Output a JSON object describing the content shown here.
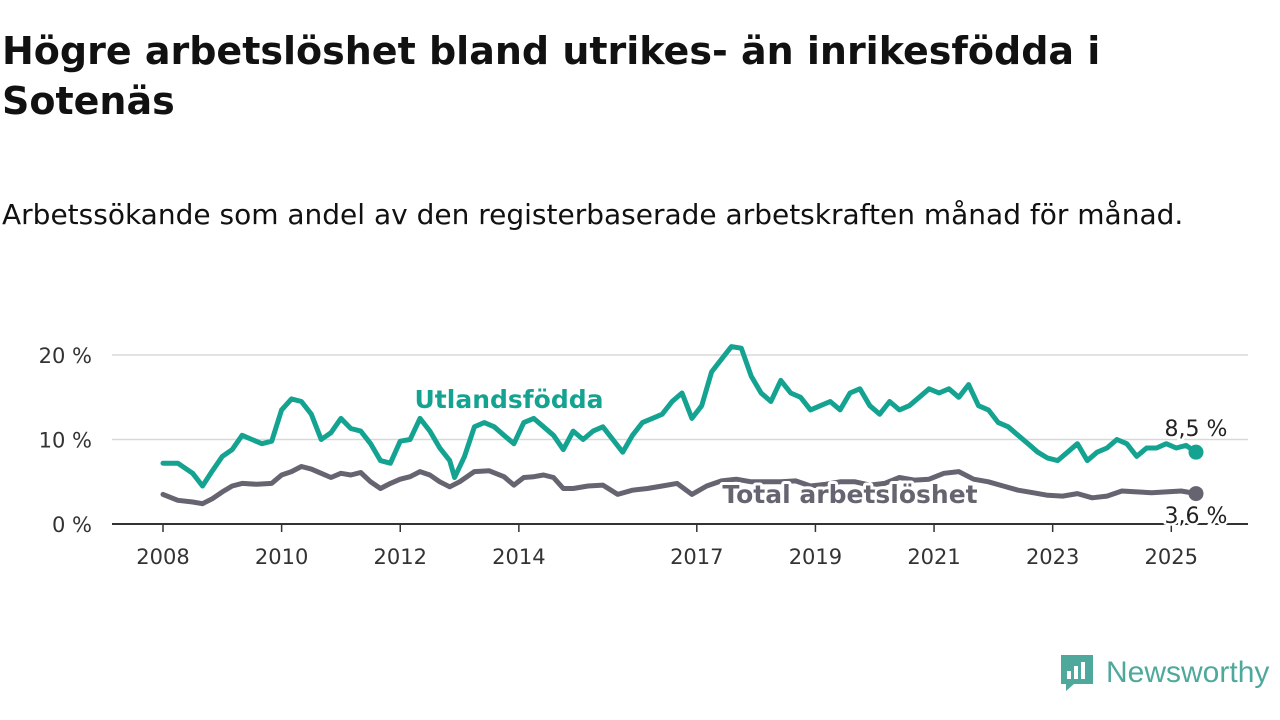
{
  "header": {
    "title": "Högre arbetslöshet bland utrikes- än inrikesfödda i Sotenäs",
    "subtitle": "Arbetssökande som andel av den registerbaserade arbetskraften månad för månad."
  },
  "brand": {
    "name": "Newsworthy",
    "logo_icon": "newsworthy-chart-logo-icon",
    "color": "#4fa89c"
  },
  "chart_data": {
    "type": "line",
    "title": "Högre arbetslöshet bland utrikes- än inrikesfödda i Sotenäs",
    "subtitle": "Arbetssökande som andel av den registerbaserade arbetskraften månad för månad.",
    "x_range": [
      "2008-01",
      "2025-06"
    ],
    "ylim": [
      0,
      21.5
    ],
    "y_ticks": [
      0,
      10,
      20
    ],
    "y_tick_labels": [
      "0 %",
      "10 %",
      "20 %"
    ],
    "x_tick_labels": [
      "2008",
      "2010",
      "2012",
      "2014",
      "2017",
      "2019",
      "2021",
      "2023",
      "2025"
    ],
    "grid": true,
    "legend": "direct labels on lines",
    "series": [
      {
        "name": "Utlandsfödda",
        "color": "#14a391",
        "end_label": "8,5 %",
        "points": [
          [
            "2008-01",
            7.2
          ],
          [
            "2008-04",
            7.2
          ],
          [
            "2008-07",
            6.0
          ],
          [
            "2008-09",
            4.5
          ],
          [
            "2008-11",
            6.3
          ],
          [
            "2009-01",
            8.0
          ],
          [
            "2009-03",
            8.8
          ],
          [
            "2009-05",
            10.5
          ],
          [
            "2009-07",
            10.0
          ],
          [
            "2009-09",
            9.5
          ],
          [
            "2009-11",
            9.8
          ],
          [
            "2010-01",
            13.5
          ],
          [
            "2010-03",
            14.8
          ],
          [
            "2010-05",
            14.5
          ],
          [
            "2010-07",
            13.0
          ],
          [
            "2010-09",
            10.0
          ],
          [
            "2010-11",
            10.8
          ],
          [
            "2011-01",
            12.5
          ],
          [
            "2011-03",
            11.3
          ],
          [
            "2011-05",
            11.0
          ],
          [
            "2011-07",
            9.5
          ],
          [
            "2011-09",
            7.5
          ],
          [
            "2011-11",
            7.2
          ],
          [
            "2012-01",
            9.8
          ],
          [
            "2012-03",
            10.0
          ],
          [
            "2012-05",
            12.5
          ],
          [
            "2012-07",
            11.0
          ],
          [
            "2012-09",
            9.0
          ],
          [
            "2012-11",
            7.5
          ],
          [
            "2012-12",
            5.5
          ],
          [
            "2013-02",
            8.0
          ],
          [
            "2013-04",
            11.5
          ],
          [
            "2013-06",
            12.0
          ],
          [
            "2013-08",
            11.5
          ],
          [
            "2013-10",
            10.5
          ],
          [
            "2013-12",
            9.5
          ],
          [
            "2014-02",
            12.0
          ],
          [
            "2014-04",
            12.5
          ],
          [
            "2014-06",
            11.5
          ],
          [
            "2014-08",
            10.5
          ],
          [
            "2014-10",
            8.8
          ],
          [
            "2014-12",
            11.0
          ],
          [
            "2015-02",
            10.0
          ],
          [
            "2015-04",
            11.0
          ],
          [
            "2015-06",
            11.5
          ],
          [
            "2015-08",
            10.0
          ],
          [
            "2015-10",
            8.5
          ],
          [
            "2015-12",
            10.5
          ],
          [
            "2016-02",
            12.0
          ],
          [
            "2016-04",
            12.5
          ],
          [
            "2016-06",
            13.0
          ],
          [
            "2016-08",
            14.5
          ],
          [
            "2016-10",
            15.5
          ],
          [
            "2016-12",
            12.5
          ],
          [
            "2017-02",
            14.0
          ],
          [
            "2017-04",
            18.0
          ],
          [
            "2017-06",
            19.5
          ],
          [
            "2017-08",
            21.0
          ],
          [
            "2017-10",
            20.8
          ],
          [
            "2017-12",
            17.5
          ],
          [
            "2018-02",
            15.5
          ],
          [
            "2018-04",
            14.5
          ],
          [
            "2018-06",
            17.0
          ],
          [
            "2018-08",
            15.5
          ],
          [
            "2018-10",
            15.0
          ],
          [
            "2018-12",
            13.5
          ],
          [
            "2019-02",
            14.0
          ],
          [
            "2019-04",
            14.5
          ],
          [
            "2019-06",
            13.5
          ],
          [
            "2019-08",
            15.5
          ],
          [
            "2019-10",
            16.0
          ],
          [
            "2019-12",
            14.0
          ],
          [
            "2020-02",
            13.0
          ],
          [
            "2020-04",
            14.5
          ],
          [
            "2020-06",
            13.5
          ],
          [
            "2020-08",
            14.0
          ],
          [
            "2020-10",
            15.0
          ],
          [
            "2020-12",
            16.0
          ],
          [
            "2021-02",
            15.5
          ],
          [
            "2021-04",
            16.0
          ],
          [
            "2021-06",
            15.0
          ],
          [
            "2021-08",
            16.5
          ],
          [
            "2021-10",
            14.0
          ],
          [
            "2021-12",
            13.5
          ],
          [
            "2022-02",
            12.0
          ],
          [
            "2022-04",
            11.5
          ],
          [
            "2022-06",
            10.5
          ],
          [
            "2022-08",
            9.5
          ],
          [
            "2022-10",
            8.5
          ],
          [
            "2022-12",
            7.8
          ],
          [
            "2023-02",
            7.5
          ],
          [
            "2023-04",
            8.5
          ],
          [
            "2023-06",
            9.5
          ],
          [
            "2023-08",
            7.5
          ],
          [
            "2023-10",
            8.5
          ],
          [
            "2023-12",
            9.0
          ],
          [
            "2024-02",
            10.0
          ],
          [
            "2024-04",
            9.5
          ],
          [
            "2024-06",
            8.0
          ],
          [
            "2024-08",
            9.0
          ],
          [
            "2024-10",
            9.0
          ],
          [
            "2024-12",
            9.5
          ],
          [
            "2025-02",
            9.0
          ],
          [
            "2025-04",
            9.3
          ],
          [
            "2025-06",
            8.5
          ]
        ]
      },
      {
        "name": "Total arbetslöshet",
        "color": "#666470",
        "end_label": "3,6 %",
        "points": [
          [
            "2008-01",
            3.5
          ],
          [
            "2008-04",
            2.8
          ],
          [
            "2008-07",
            2.6
          ],
          [
            "2008-09",
            2.4
          ],
          [
            "2008-11",
            3.0
          ],
          [
            "2009-01",
            3.8
          ],
          [
            "2009-03",
            4.5
          ],
          [
            "2009-05",
            4.8
          ],
          [
            "2009-08",
            4.7
          ],
          [
            "2009-11",
            4.8
          ],
          [
            "2010-01",
            5.8
          ],
          [
            "2010-03",
            6.2
          ],
          [
            "2010-05",
            6.8
          ],
          [
            "2010-07",
            6.5
          ],
          [
            "2010-09",
            6.0
          ],
          [
            "2010-11",
            5.5
          ],
          [
            "2011-01",
            6.0
          ],
          [
            "2011-03",
            5.8
          ],
          [
            "2011-05",
            6.1
          ],
          [
            "2011-07",
            5.0
          ],
          [
            "2011-09",
            4.2
          ],
          [
            "2011-11",
            4.8
          ],
          [
            "2012-01",
            5.3
          ],
          [
            "2012-03",
            5.6
          ],
          [
            "2012-05",
            6.2
          ],
          [
            "2012-07",
            5.8
          ],
          [
            "2012-09",
            5.0
          ],
          [
            "2012-11",
            4.4
          ],
          [
            "2013-01",
            5.0
          ],
          [
            "2013-04",
            6.2
          ],
          [
            "2013-07",
            6.3
          ],
          [
            "2013-10",
            5.6
          ],
          [
            "2013-12",
            4.6
          ],
          [
            "2014-02",
            5.5
          ],
          [
            "2014-04",
            5.6
          ],
          [
            "2014-06",
            5.8
          ],
          [
            "2014-08",
            5.5
          ],
          [
            "2014-10",
            4.2
          ],
          [
            "2014-12",
            4.2
          ],
          [
            "2015-03",
            4.5
          ],
          [
            "2015-06",
            4.6
          ],
          [
            "2015-09",
            3.5
          ],
          [
            "2015-12",
            4.0
          ],
          [
            "2016-03",
            4.2
          ],
          [
            "2016-06",
            4.5
          ],
          [
            "2016-09",
            4.8
          ],
          [
            "2016-12",
            3.5
          ],
          [
            "2017-03",
            4.5
          ],
          [
            "2017-06",
            5.1
          ],
          [
            "2017-09",
            5.3
          ],
          [
            "2017-12",
            5.0
          ],
          [
            "2018-03",
            5.0
          ],
          [
            "2018-06",
            5.0
          ],
          [
            "2018-09",
            5.1
          ],
          [
            "2018-12",
            4.5
          ],
          [
            "2019-03",
            4.7
          ],
          [
            "2019-06",
            5.0
          ],
          [
            "2019-09",
            5.0
          ],
          [
            "2019-12",
            4.6
          ],
          [
            "2020-03",
            4.8
          ],
          [
            "2020-06",
            5.5
          ],
          [
            "2020-09",
            5.2
          ],
          [
            "2020-12",
            5.3
          ],
          [
            "2021-03",
            6.0
          ],
          [
            "2021-06",
            6.2
          ],
          [
            "2021-09",
            5.3
          ],
          [
            "2021-12",
            5.0
          ],
          [
            "2022-03",
            4.5
          ],
          [
            "2022-06",
            4.0
          ],
          [
            "2022-09",
            3.7
          ],
          [
            "2022-12",
            3.4
          ],
          [
            "2023-03",
            3.3
          ],
          [
            "2023-06",
            3.6
          ],
          [
            "2023-09",
            3.1
          ],
          [
            "2023-12",
            3.3
          ],
          [
            "2024-03",
            3.9
          ],
          [
            "2024-06",
            3.8
          ],
          [
            "2024-09",
            3.7
          ],
          [
            "2024-12",
            3.8
          ],
          [
            "2025-03",
            3.9
          ],
          [
            "2025-06",
            3.6
          ]
        ]
      }
    ]
  }
}
